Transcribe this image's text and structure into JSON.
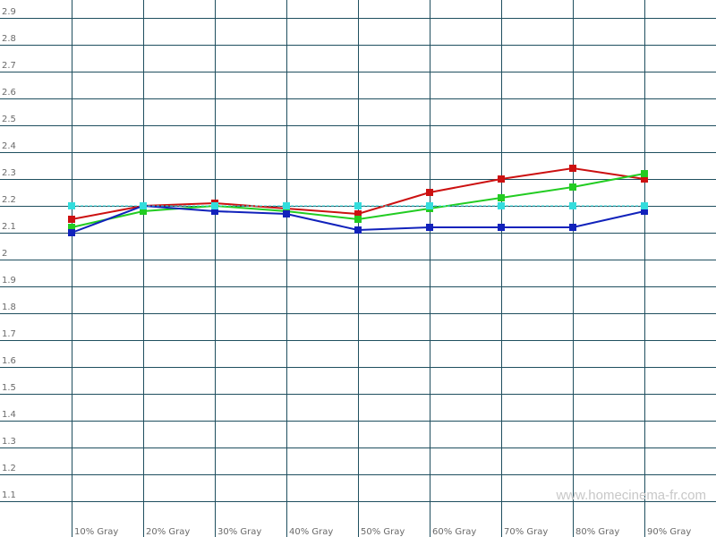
{
  "chart_data": {
    "type": "line",
    "categories": [
      "10% Gray",
      "20% Gray",
      "30% Gray",
      "40% Gray",
      "50% Gray",
      "60% Gray",
      "70% Gray",
      "80% Gray",
      "90% Gray"
    ],
    "series": [
      {
        "color": "#cc1111",
        "style": "solid",
        "values": [
          2.15,
          2.2,
          2.21,
          2.19,
          2.17,
          2.25,
          2.3,
          2.34,
          2.3
        ]
      },
      {
        "color": "#22cc22",
        "style": "solid",
        "values": [
          2.12,
          2.18,
          2.2,
          2.18,
          2.15,
          2.19,
          2.23,
          2.27,
          2.32
        ]
      },
      {
        "color": "#1122bb",
        "style": "solid",
        "values": [
          2.1,
          2.2,
          2.18,
          2.17,
          2.11,
          2.12,
          2.12,
          2.12,
          2.18
        ]
      },
      {
        "color": "#33dddd",
        "style": "dashed",
        "values": [
          2.2,
          2.2,
          2.2,
          2.2,
          2.2,
          2.2,
          2.2,
          2.2,
          2.2
        ]
      }
    ],
    "y_ticks": [
      "1.1",
      "1.2",
      "1.3",
      "1.4",
      "1.5",
      "1.6",
      "1.7",
      "1.8",
      "1.9",
      "2",
      "2.1",
      "2.2",
      "2.3",
      "2.4",
      "2.5",
      "2.6",
      "2.7",
      "2.8",
      "2.9"
    ],
    "ylim": [
      1.0,
      3.0
    ],
    "grid": true,
    "legend": "none",
    "grid_color": "#1f4f5f"
  },
  "watermark": "www.homecinema-fr.com"
}
